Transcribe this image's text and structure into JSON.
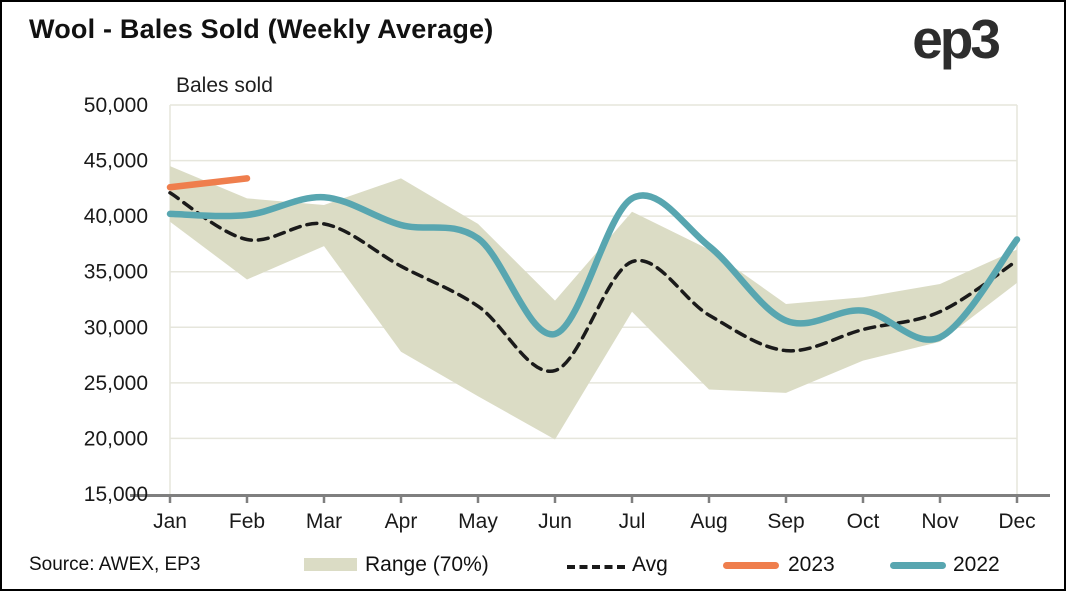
{
  "header": {
    "title": "Wool - Bales Sold (Weekly Average)",
    "logo": "ep3"
  },
  "footer": {
    "source": "Source: AWEX, EP3"
  },
  "chart_data": {
    "type": "line",
    "title": "Wool - Bales Sold (Weekly Average)",
    "ylabel": "Bales sold",
    "xlabel": "",
    "categories": [
      "Jan",
      "Feb",
      "Mar",
      "Apr",
      "May",
      "Jun",
      "Jul",
      "Aug",
      "Sep",
      "Oct",
      "Nov",
      "Dec"
    ],
    "ylim": [
      15000,
      50000
    ],
    "ytick_values": [
      50000,
      45000,
      40000,
      35000,
      30000,
      25000,
      20000,
      15000
    ],
    "ytick_labels": [
      "50,000",
      "45,000",
      "40,000",
      "35,000",
      "30,000",
      "25,000",
      "20,000",
      "15,000"
    ],
    "grid": true,
    "legend_position": "bottom",
    "colors": {
      "band": "#dbdcc5",
      "avg": "#1a1a1a",
      "y2023": "#ef7e4d",
      "y2022": "#58a6b0",
      "axis": "#7f7f7f",
      "grid": "#e6e6dc",
      "text": "#1a1a1a"
    },
    "series": [
      {
        "name": "Range (70%)",
        "type": "band",
        "upper": [
          44500,
          41600,
          41000,
          43400,
          39300,
          32400,
          40400,
          37000,
          32100,
          32700,
          33900,
          37000
        ],
        "lower": [
          39500,
          34300,
          37300,
          27800,
          23800,
          19900,
          31400,
          24400,
          24100,
          27000,
          28700,
          34000
        ]
      },
      {
        "name": "Avg",
        "type": "line",
        "dashed": true,
        "values": [
          42100,
          37900,
          39300,
          35500,
          31900,
          26100,
          35900,
          31100,
          27900,
          29800,
          31400,
          36000
        ]
      },
      {
        "name": "2023",
        "type": "line",
        "dashed": false,
        "values": [
          42600,
          43400,
          null,
          null,
          null,
          null,
          null,
          null,
          null,
          null,
          null,
          null
        ]
      },
      {
        "name": "2022",
        "type": "line",
        "dashed": false,
        "values": [
          40200,
          40100,
          41700,
          39200,
          38000,
          29400,
          41600,
          37300,
          30600,
          31500,
          29100,
          37900
        ]
      }
    ]
  }
}
